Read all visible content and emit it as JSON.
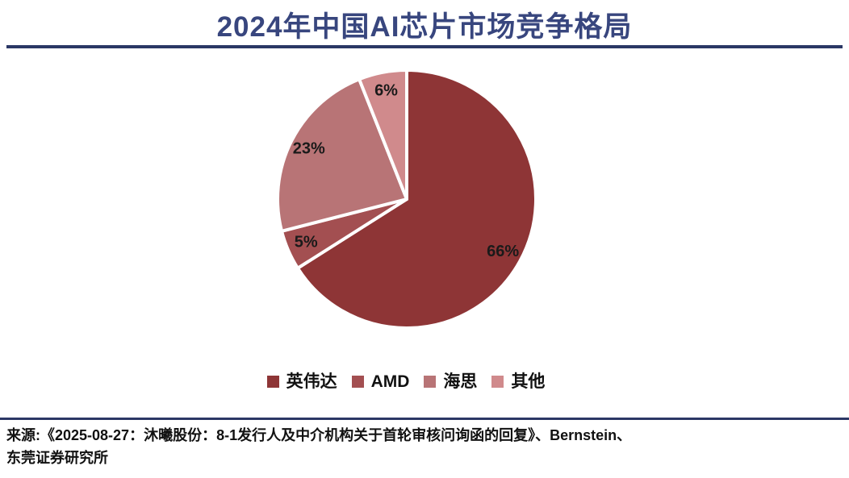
{
  "header": {
    "title": "2024年中国AI芯片市场竞争格局"
  },
  "chart_data": {
    "type": "pie",
    "title": "2024年中国AI芯片市场竞争格局",
    "series": [
      {
        "name": "英伟达",
        "value": 66,
        "label": "66%",
        "color": "#8E3536"
      },
      {
        "name": "AMD",
        "value": 5,
        "label": "5%",
        "color": "#A34F51"
      },
      {
        "name": "海思",
        "value": 23,
        "label": "23%",
        "color": "#B87476"
      },
      {
        "name": "其他",
        "value": 6,
        "label": "6%",
        "color": "#D08A8C"
      }
    ],
    "start_angle_deg": -90,
    "direction": "clockwise",
    "slice_border_color": "#FFFFFF",
    "label_radius_factor": 0.85,
    "legend_position": "bottom"
  },
  "footer": {
    "source_line1": "来源:《2025-08-27：沐曦股份：8-1发行人及中介机构关于首轮审核问询函的回复》、Bernstein、",
    "source_line2": "东莞证券研究所"
  },
  "colors": {
    "title_text": "#38467E",
    "divider": "#2B3765",
    "label_text": "#1A1A1A"
  }
}
